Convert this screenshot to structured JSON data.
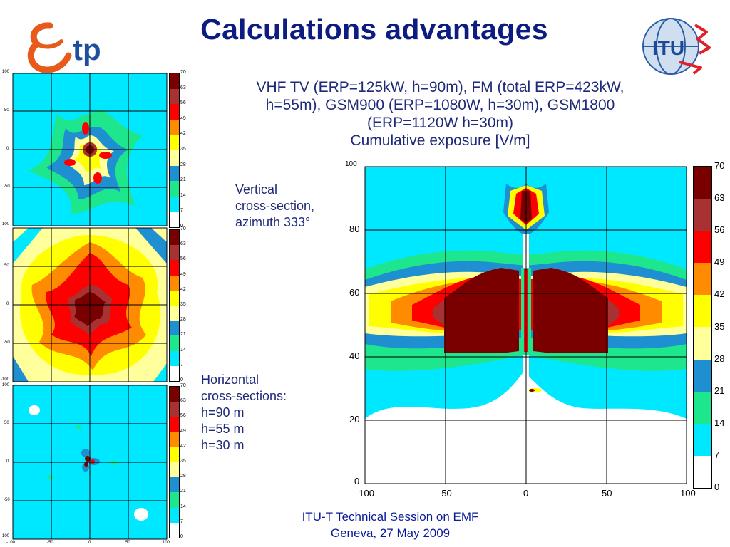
{
  "slide": {
    "title": "Calculations advantages",
    "description": [
      "VHF TV (ERP=125kW, h=90m), FM (total ERP=423kW,",
      "h=55m), GSM900 (ERP=1080W, h=30m), GSM1800",
      "(ERP=1120W h=30m)",
      "Cumulative exposure [V/m]"
    ],
    "vertical_note": [
      "Vertical",
      "cross-section,",
      "azimuth 333°"
    ],
    "horizontal_note": [
      "Horizontal",
      "cross-sections:",
      "h=90 m",
      "h=55 m",
      "h=30 m"
    ],
    "footer": [
      "ITU-T Technical Session on EMF",
      "Geneva, 27 May 2009"
    ],
    "logo_left_text": "tp",
    "logo_right_text": "ITU"
  },
  "colorscale": {
    "labels": [
      "70",
      "63",
      "56",
      "49",
      "42",
      "35",
      "28",
      "21",
      "14",
      "7",
      "0"
    ],
    "colors": [
      "#7a0000",
      "#a83232",
      "#ff0000",
      "#ff8c00",
      "#ffff00",
      "#ffff9c",
      "#1e8fd0",
      "#1ee68c",
      "#00e8ff",
      "#ffffff"
    ]
  },
  "small_axes": {
    "y_ticks": [
      "100",
      "50",
      "0",
      "-50",
      "-100"
    ],
    "x_ticks": [
      "-100",
      "-50",
      "0",
      "50",
      "100"
    ]
  },
  "big_axes": {
    "y_ticks": [
      "100",
      "80",
      "60",
      "40",
      "20",
      "0"
    ],
    "x_ticks": [
      "-100",
      "-50",
      "0",
      "50",
      "100"
    ]
  }
}
